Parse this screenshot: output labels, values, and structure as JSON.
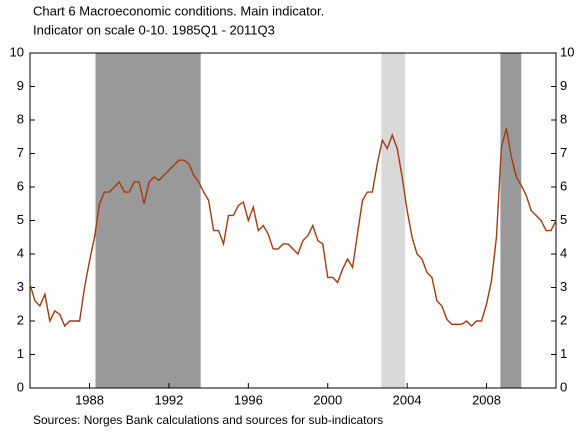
{
  "chart_data": {
    "type": "line",
    "title": "Chart 6 Macroeconomic conditions. Main indicator.",
    "subtitle": "Indicator on scale 0-10. 1985Q1 - 2011Q3",
    "source": "Sources: Norges Bank calculations and sources for sub-indicators",
    "x": [
      1985,
      1985.25,
      1985.5,
      1985.75,
      1986,
      1986.25,
      1986.5,
      1986.75,
      1987,
      1987.25,
      1987.5,
      1987.75,
      1988,
      1988.25,
      1988.5,
      1988.75,
      1989,
      1989.25,
      1989.5,
      1989.75,
      1990,
      1990.25,
      1990.5,
      1990.75,
      1991,
      1991.25,
      1991.5,
      1991.75,
      1992,
      1992.25,
      1992.5,
      1992.75,
      1993,
      1993.25,
      1993.5,
      1993.75,
      1994,
      1994.25,
      1994.5,
      1994.75,
      1995,
      1995.25,
      1995.5,
      1995.75,
      1996,
      1996.25,
      1996.5,
      1996.75,
      1997,
      1997.25,
      1997.5,
      1997.75,
      1998,
      1998.25,
      1998.5,
      1998.75,
      1999,
      1999.25,
      1999.5,
      1999.75,
      2000,
      2000.25,
      2000.5,
      2000.75,
      2001,
      2001.25,
      2001.5,
      2001.75,
      2002,
      2002.25,
      2002.5,
      2002.75,
      2003,
      2003.25,
      2003.5,
      2003.75,
      2004,
      2004.25,
      2004.5,
      2004.75,
      2005,
      2005.25,
      2005.5,
      2005.75,
      2006,
      2006.25,
      2006.5,
      2006.75,
      2007,
      2007.25,
      2007.5,
      2007.75,
      2008,
      2008.25,
      2008.5,
      2008.75,
      2009,
      2009.25,
      2009.5,
      2009.75,
      2010,
      2010.25,
      2010.5,
      2010.75,
      2011,
      2011.25,
      2011.5
    ],
    "series": [
      {
        "color": "#a23c0e",
        "values": [
          3.1,
          2.6,
          2.45,
          2.8,
          2.0,
          2.3,
          2.2,
          1.85,
          2.0,
          2.0,
          2.0,
          3.0,
          3.8,
          4.5,
          5.5,
          5.85,
          5.85,
          6.0,
          6.15,
          5.85,
          5.85,
          6.15,
          6.15,
          5.5,
          6.15,
          6.3,
          6.2,
          6.35,
          6.5,
          6.65,
          6.8,
          6.8,
          6.7,
          6.35,
          6.15,
          5.85,
          5.6,
          4.7,
          4.7,
          4.3,
          5.15,
          5.15,
          5.45,
          5.55,
          5.0,
          5.4,
          4.7,
          4.85,
          4.6,
          4.15,
          4.15,
          4.3,
          4.3,
          4.15,
          4.0,
          4.4,
          4.55,
          4.85,
          4.4,
          4.3,
          3.3,
          3.3,
          3.15,
          3.55,
          3.85,
          3.6,
          4.6,
          5.6,
          5.85,
          5.85,
          6.7,
          7.4,
          7.15,
          7.55,
          7.15,
          6.3,
          5.3,
          4.5,
          4.0,
          3.85,
          3.45,
          3.3,
          2.6,
          2.45,
          2.05,
          1.9,
          1.9,
          1.9,
          2.0,
          1.85,
          2.0,
          2.0,
          2.5,
          3.2,
          4.5,
          7.2,
          7.75,
          6.9,
          6.3,
          6.05,
          5.75,
          5.3,
          5.15,
          5.0,
          4.7,
          4.7,
          5.0
        ]
      }
    ],
    "shaded": [
      {
        "start": 1988.3,
        "end": 1993.6,
        "color": "#999999"
      },
      {
        "start": 2002.7,
        "end": 2003.9,
        "color": "#d9d9d9"
      },
      {
        "start": 2008.7,
        "end": 2009.75,
        "color": "#999999"
      }
    ],
    "xlim": [
      1985,
      2011.5
    ],
    "xticks": [
      1988,
      1992,
      1996,
      2000,
      2004,
      2008
    ],
    "ylim": [
      0,
      10
    ],
    "yticks": [
      0,
      1,
      2,
      3,
      4,
      5,
      6,
      7,
      8,
      9,
      10
    ],
    "y2lim": [
      0,
      10
    ],
    "y2ticks": [
      0,
      1,
      2,
      3,
      4,
      5,
      6,
      7,
      8,
      9,
      10
    ]
  }
}
